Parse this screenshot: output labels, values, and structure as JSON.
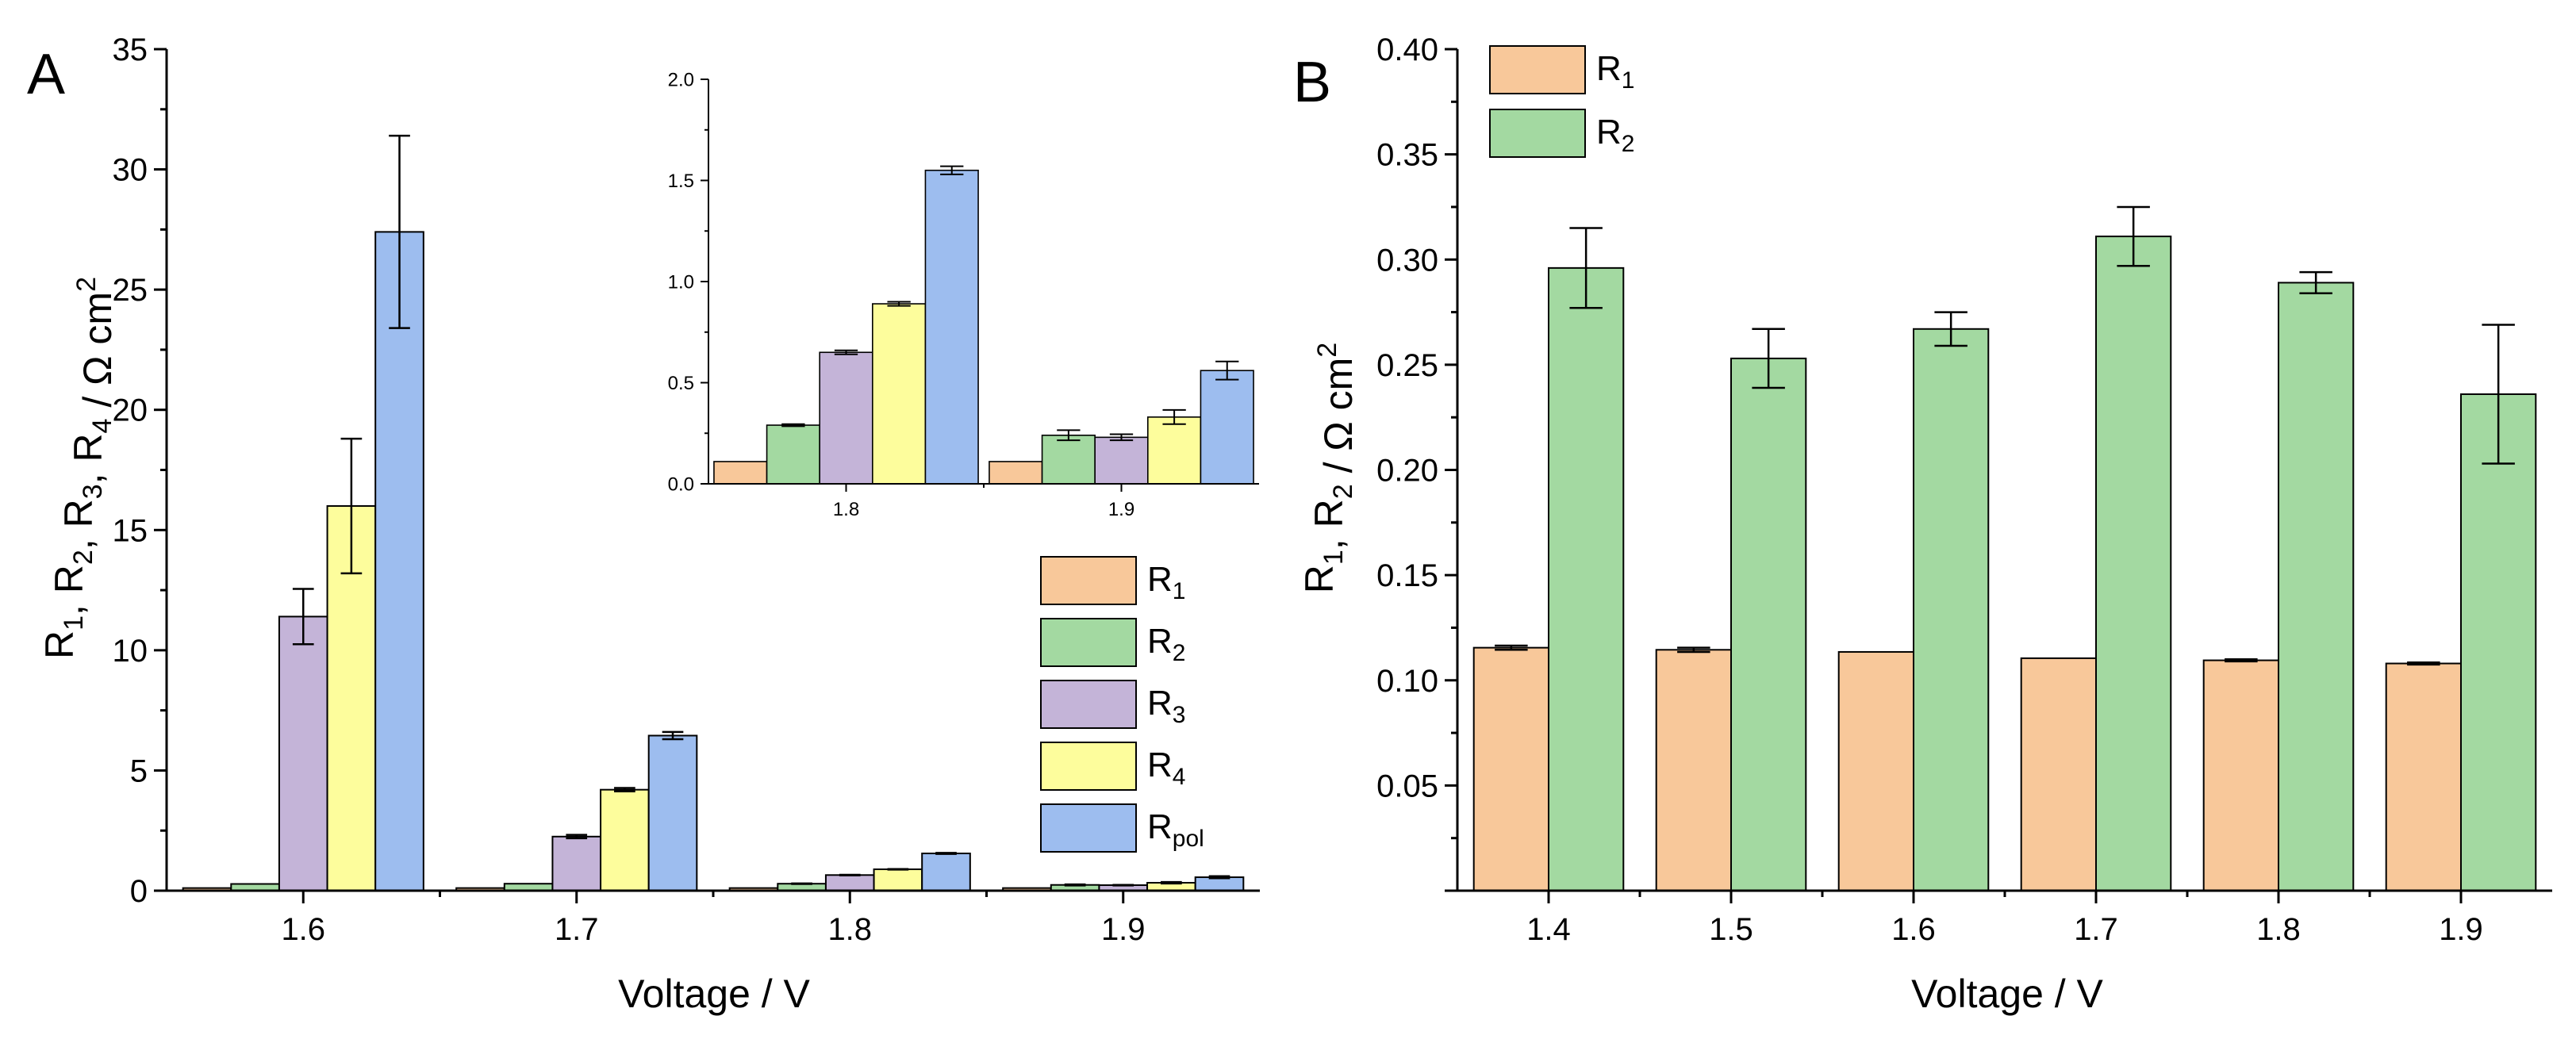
{
  "chart_data": [
    {
      "type": "bar",
      "panel_label": "A",
      "categories": [
        "1.6",
        "1.7",
        "1.8",
        "1.9"
      ],
      "xlabel": "Voltage / V",
      "ylabel": {
        "parts": [
          [
            "R",
            "1"
          ],
          [
            "R",
            "2"
          ],
          [
            "R",
            "3"
          ],
          [
            "R",
            "4"
          ]
        ],
        "unit": "Ω cm",
        "unit_sup": "2"
      },
      "ylim": [
        0,
        35
      ],
      "yticks": [
        "0",
        "5",
        "10",
        "15",
        "20",
        "25",
        "30",
        "35"
      ],
      "series": [
        {
          "name": "R1",
          "label": "R",
          "sub": "1",
          "color": "#f8c89a",
          "values": [
            0.11,
            0.11,
            0.11,
            0.11
          ],
          "errors": [
            0,
            0,
            0,
            0
          ]
        },
        {
          "name": "R2",
          "label": "R",
          "sub": "2",
          "color": "#a3d9a1",
          "values": [
            0.28,
            0.29,
            0.29,
            0.24
          ],
          "errors": [
            0,
            0,
            0.01,
            0.02
          ]
        },
        {
          "name": "R3",
          "label": "R",
          "sub": "3",
          "color": "#c4b4d8",
          "values": [
            11.4,
            2.25,
            0.65,
            0.23
          ],
          "errors": [
            1.15,
            0.07,
            0.01,
            0.01
          ]
        },
        {
          "name": "R4",
          "label": "R",
          "sub": "4",
          "color": "#fdfd9c",
          "values": [
            16.0,
            4.2,
            0.89,
            0.33
          ],
          "errors": [
            2.8,
            0.07,
            0.01,
            0.03
          ]
        },
        {
          "name": "Rpol",
          "label": "R",
          "sub": "pol",
          "color": "#9dbdef",
          "values": [
            27.4,
            6.45,
            1.55,
            0.56
          ],
          "errors": [
            4.0,
            0.15,
            0.02,
            0.04
          ]
        }
      ],
      "legend_position": "right"
    },
    {
      "type": "bar",
      "panel_label": "",
      "inset_of": "A",
      "categories": [
        "1.8",
        "1.9"
      ],
      "ylim": [
        0,
        2.0
      ],
      "yticks": [
        "0.0",
        "0.5",
        "1.0",
        "1.5",
        "2.0"
      ],
      "series": [
        {
          "name": "R1",
          "color": "#f8c89a",
          "values": [
            0.11,
            0.11
          ],
          "errors": [
            0,
            0
          ]
        },
        {
          "name": "R2",
          "color": "#a3d9a1",
          "values": [
            0.29,
            0.24
          ],
          "errors": [
            0.005,
            0.025
          ]
        },
        {
          "name": "R3",
          "color": "#c4b4d8",
          "values": [
            0.65,
            0.23
          ],
          "errors": [
            0.01,
            0.015
          ]
        },
        {
          "name": "R4",
          "color": "#fdfd9c",
          "values": [
            0.89,
            0.33
          ],
          "errors": [
            0.01,
            0.035
          ]
        },
        {
          "name": "Rpol",
          "color": "#9dbdef",
          "values": [
            1.55,
            0.56
          ],
          "errors": [
            0.02,
            0.045
          ]
        }
      ]
    },
    {
      "type": "bar",
      "panel_label": "B",
      "categories": [
        "1.4",
        "1.5",
        "1.6",
        "1.7",
        "1.8",
        "1.9"
      ],
      "xlabel": "Voltage / V",
      "ylabel": {
        "parts": [
          [
            "R",
            "1"
          ],
          [
            "R",
            "2"
          ]
        ],
        "unit": "Ω cm",
        "unit_sup": "2"
      },
      "ylim": [
        0,
        0.4
      ],
      "yticks": [
        "",
        "0.05",
        "0.10",
        "0.15",
        "0.20",
        "0.25",
        "0.30",
        "0.35",
        "0.40"
      ],
      "series": [
        {
          "name": "R1",
          "label": "R",
          "sub": "1",
          "color": "#f8c89a",
          "values": [
            0.1155,
            0.1145,
            0.1135,
            0.1105,
            0.1095,
            0.108
          ],
          "errors": [
            0.001,
            0.001,
            0,
            0,
            0.0005,
            0.0005
          ]
        },
        {
          "name": "R2",
          "label": "R",
          "sub": "2",
          "color": "#a3d9a1",
          "values": [
            0.296,
            0.253,
            0.267,
            0.311,
            0.289,
            0.236
          ],
          "errors": [
            0.019,
            0.014,
            0.008,
            0.014,
            0.005,
            0.033
          ]
        }
      ],
      "legend_position": "top-left"
    }
  ]
}
